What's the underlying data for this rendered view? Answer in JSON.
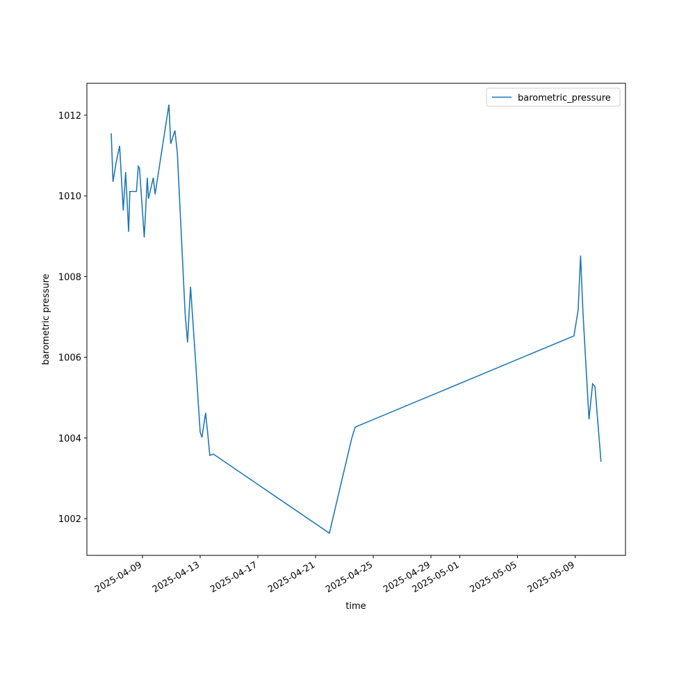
{
  "chart_data": {
    "type": "line",
    "x_label": "time",
    "y_label": "barometric pressure",
    "x": [
      "2025-04-06 20:00",
      "2025-04-06 23:00",
      "2025-04-07 04:00",
      "2025-04-07 10:00",
      "2025-04-07 16:00",
      "2025-04-07 20:00",
      "2025-04-08 01:00",
      "2025-04-08 03:00",
      "2025-04-08 14:00",
      "2025-04-08 17:00",
      "2025-04-08 19:00",
      "2025-04-09 03:00",
      "2025-04-09 08:00",
      "2025-04-09 10:00",
      "2025-04-09 18:00",
      "2025-04-09 21:00",
      "2025-04-10 20:00",
      "2025-04-10 23:00",
      "2025-04-11 06:00",
      "2025-04-11 10:00",
      "2025-04-11 23:00",
      "2025-04-12 03:00",
      "2025-04-12 08:00",
      "2025-04-12 16:00",
      "2025-04-13 00:00",
      "2025-04-13 03:00",
      "2025-04-13 09:00",
      "2025-04-13 13:00",
      "2025-04-13 16:00",
      "2025-04-13 22:00",
      "2025-04-21 23:00",
      "2025-04-23 12:00",
      "2025-04-23 18:00",
      "2025-05-08 22:00",
      "2025-05-09 05:00",
      "2025-05-09 09:00",
      "2025-05-09 13:00",
      "2025-05-09 23:00",
      "2025-05-10 05:00",
      "2025-05-10 09:00",
      "2025-05-10 19:00"
    ],
    "series": [
      {
        "name": "barometric_pressure",
        "color": "#1f77b4",
        "values": [
          1011.55,
          1010.35,
          1010.81,
          1011.24,
          1009.64,
          1010.59,
          1009.11,
          1010.11,
          1010.11,
          1010.73,
          1010.69,
          1008.97,
          1010.45,
          1009.93,
          1010.45,
          1010.04,
          1012.26,
          1011.29,
          1011.62,
          1011.07,
          1007.08,
          1006.37,
          1007.75,
          1005.99,
          1004.15,
          1004.01,
          1004.62,
          1004.05,
          1003.57,
          1003.6,
          1001.64,
          1003.98,
          1004.27,
          1006.53,
          1007.18,
          1008.52,
          1007.11,
          1004.46,
          1005.34,
          1005.27,
          1003.41
        ]
      }
    ],
    "xlim": [
      "2025-04-05 03:30",
      "2025-05-12 11:45"
    ],
    "xticks": [
      "2025-04-09",
      "2025-04-13",
      "2025-04-17",
      "2025-04-21",
      "2025-04-25",
      "2025-04-29",
      "2025-05-01",
      "2025-05-05",
      "2025-05-09"
    ],
    "ylim": [
      1001.09,
      1012.79
    ],
    "yticks": [
      1002,
      1004,
      1006,
      1008,
      1010,
      1012
    ],
    "legend": "upper right"
  }
}
